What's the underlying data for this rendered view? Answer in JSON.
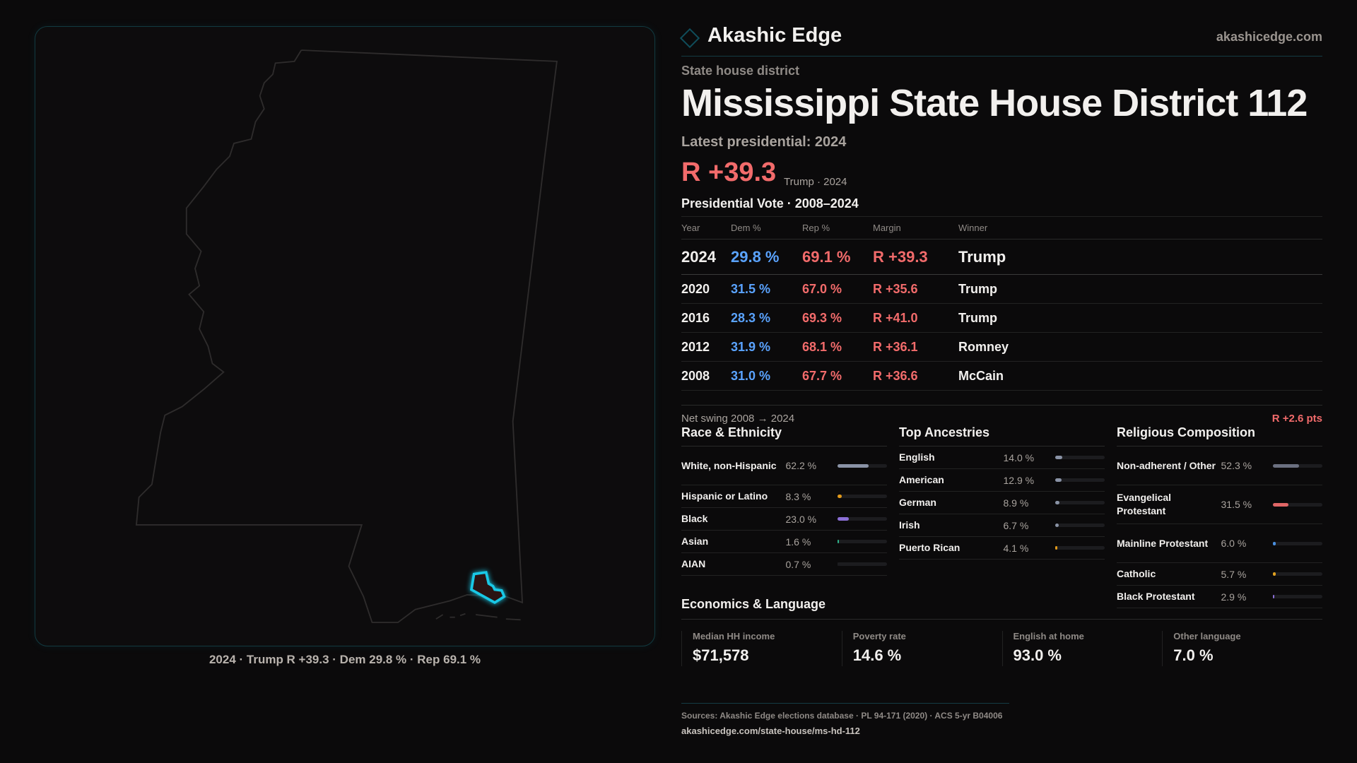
{
  "brand": {
    "name": "Akashic Edge",
    "site": "akashicedge.com"
  },
  "kicker": "State house district",
  "title": "Mississippi State House District 112",
  "latest": "Latest presidential: 2024",
  "headline_margin": "R +39.3",
  "headline_sub": "Trump · 2024",
  "map_caption": "2024 · Trump R +39.3 · Dem 29.8 % · Rep 69.1 %",
  "presidential": {
    "title": "Presidential Vote · 2008–2024",
    "headers": [
      "Year",
      "Dem %",
      "Rep %",
      "Margin",
      "Winner"
    ],
    "rows": [
      [
        "2024",
        "29.8 %",
        "69.1 %",
        "R +39.3",
        "Trump"
      ],
      [
        "2020",
        "31.5 %",
        "67.0 %",
        "R +35.6",
        "Trump"
      ],
      [
        "2016",
        "28.3 %",
        "69.3 %",
        "R +41.0",
        "Trump"
      ],
      [
        "2012",
        "31.9 %",
        "68.1 %",
        "R +36.1",
        "Romney"
      ],
      [
        "2008",
        "31.0 %",
        "67.7 %",
        "R +36.6",
        "McCain"
      ]
    ]
  },
  "swing": {
    "label": "Net swing 2008 → 2024",
    "value": "R +2.6 pts"
  },
  "race": {
    "title": "Race & Ethnicity",
    "items": [
      {
        "label": "White, non-Hispanic",
        "value": "62.2 %",
        "pct": 62.2,
        "color": "#8a93a6"
      },
      {
        "label": "Hispanic or Latino",
        "value": "8.3 %",
        "pct": 8.3,
        "color": "#e39a1a"
      },
      {
        "label": "Black",
        "value": "23.0 %",
        "pct": 23.0,
        "color": "#8b6fd6"
      },
      {
        "label": "Asian",
        "value": "1.6 %",
        "pct": 1.6,
        "color": "#2fb38a"
      },
      {
        "label": "AIAN",
        "value": "0.7 %",
        "pct": 0.7,
        "color": "#1c1c1f"
      }
    ]
  },
  "ancestry": {
    "title": "Top Ancestries",
    "items": [
      {
        "label": "English",
        "value": "14.0 %",
        "pct": 14.0,
        "color": "#8a93a6"
      },
      {
        "label": "American",
        "value": "12.9 %",
        "pct": 12.9,
        "color": "#8a93a6"
      },
      {
        "label": "German",
        "value": "8.9 %",
        "pct": 8.9,
        "color": "#8a93a6"
      },
      {
        "label": "Irish",
        "value": "6.7 %",
        "pct": 6.7,
        "color": "#8a93a6"
      },
      {
        "label": "Puerto Rican",
        "value": "4.1 %",
        "pct": 4.1,
        "color": "#e39a1a"
      }
    ]
  },
  "religion": {
    "title": "Religious Composition",
    "items": [
      {
        "label": "Non-adherent / Other",
        "value": "52.3 %",
        "pct": 52.3,
        "color": "#6b7080"
      },
      {
        "label": "Evangelical Protestant",
        "value": "31.5 %",
        "pct": 31.5,
        "color": "#e06666"
      },
      {
        "label": "Mainline Protestant",
        "value": "6.0 %",
        "pct": 6.0,
        "color": "#4a8fe0"
      },
      {
        "label": "Catholic",
        "value": "5.7 %",
        "pct": 5.7,
        "color": "#e0a020"
      },
      {
        "label": "Black Protestant",
        "value": "2.9 %",
        "pct": 2.9,
        "color": "#8b6fd6"
      }
    ]
  },
  "economics": {
    "title": "Economics & Language",
    "cards": [
      {
        "label": "Median HH income",
        "value": "$71,578"
      },
      {
        "label": "Poverty rate",
        "value": "14.6 %"
      },
      {
        "label": "English at home",
        "value": "93.0 %"
      },
      {
        "label": "Other language",
        "value": "7.0 %"
      }
    ]
  },
  "sources": "Sources: Akashic Edge elections database · PL 94-171 (2020) · ACS 5-yr B04006",
  "url": "akashicedge.com/state-house/ms-hd-112",
  "colors": {
    "dem": "#5aa3ff",
    "rep": "#f26b6b",
    "accent": "#19c8e6"
  }
}
